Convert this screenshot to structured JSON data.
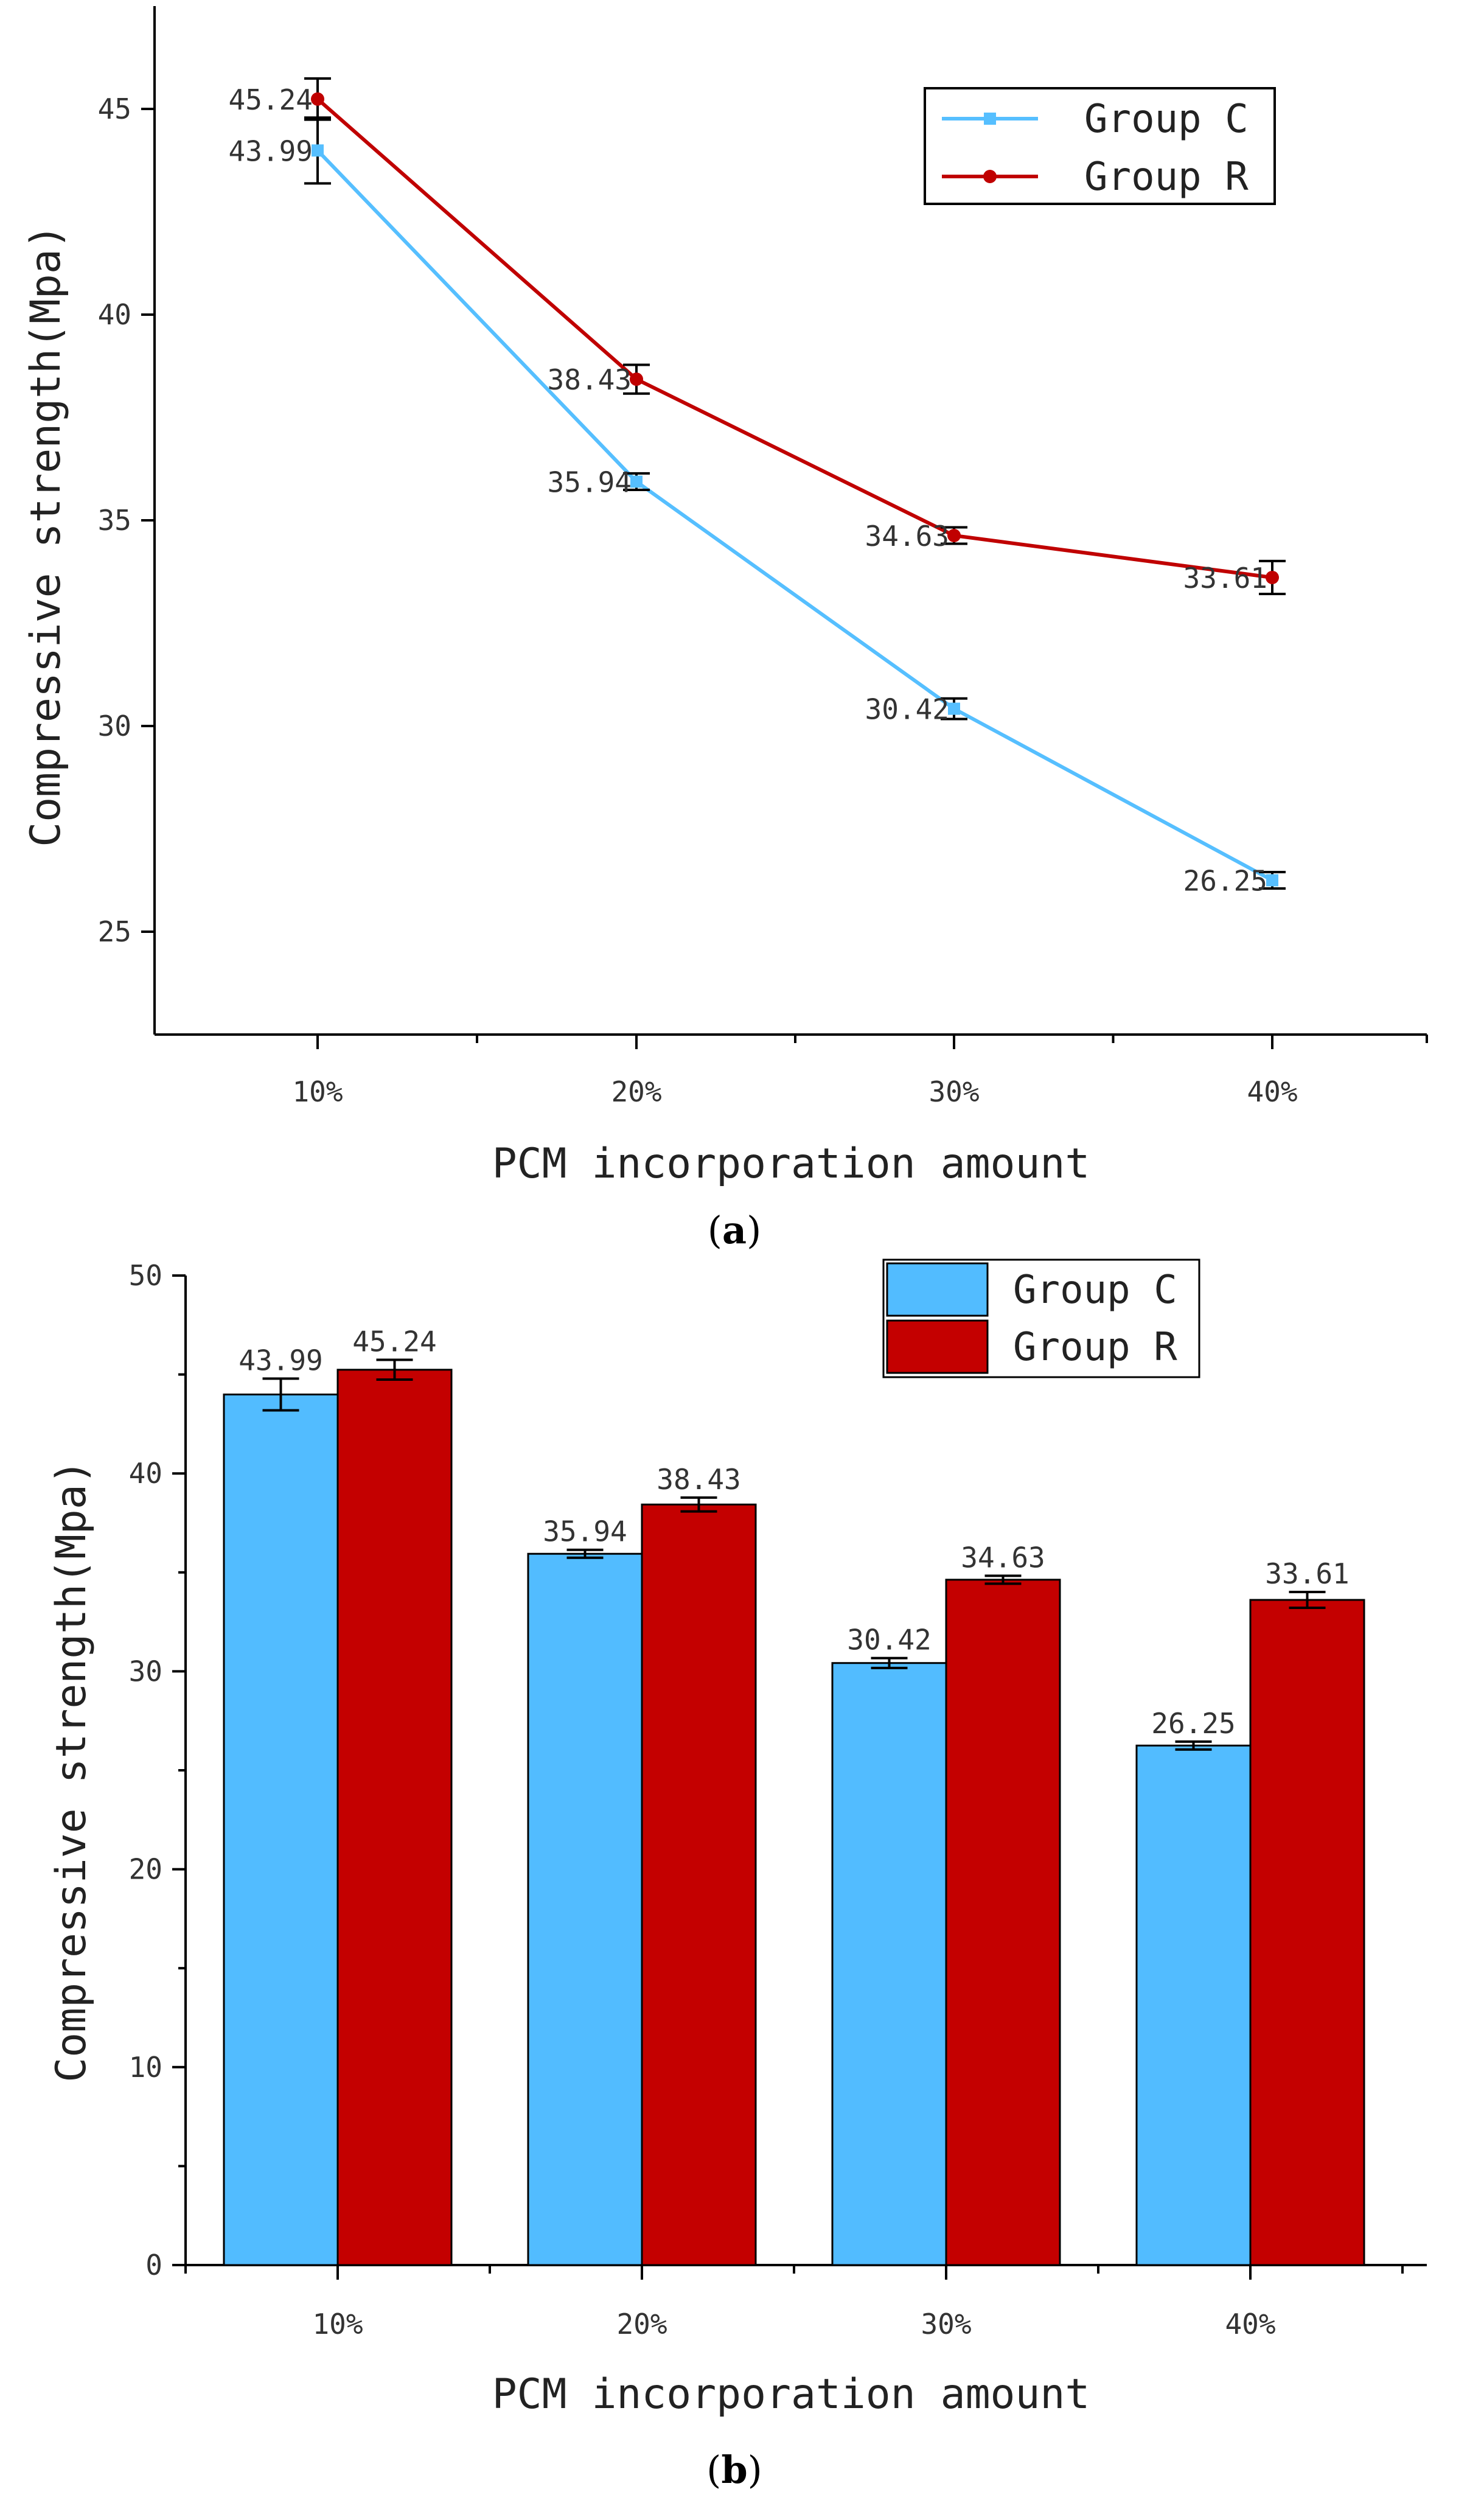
{
  "chart_data": [
    {
      "type": "line",
      "panel": "a",
      "caption_open": "(",
      "caption_letter": "a",
      "caption_close": ")",
      "categories": [
        "10%",
        "20%",
        "30%",
        "40%"
      ],
      "series": [
        {
          "name": "Group C",
          "values": [
            43.99,
            35.94,
            30.42,
            26.25
          ],
          "errors": [
            0.8,
            0.2,
            0.25,
            0.2
          ],
          "color": "#56bfff",
          "marker": "square"
        },
        {
          "name": "Group R",
          "values": [
            45.24,
            38.43,
            34.63,
            33.61
          ],
          "errors": [
            0.5,
            0.35,
            0.2,
            0.4
          ],
          "color": "#c00000",
          "marker": "circle"
        }
      ],
      "xlabel": "PCM incorporation amount",
      "ylabel": "Compressive strength(Mpa)",
      "ylim": [
        22.5,
        47.5
      ],
      "yticks": [
        25,
        30,
        35,
        40,
        45
      ],
      "legend_position": "top-right"
    },
    {
      "type": "bar",
      "panel": "b",
      "caption_open": "(",
      "caption_letter": "b",
      "caption_close": ")",
      "categories": [
        "10%",
        "20%",
        "30%",
        "40%"
      ],
      "series": [
        {
          "name": "Group C",
          "values": [
            43.99,
            35.94,
            30.42,
            26.25
          ],
          "errors": [
            0.8,
            0.2,
            0.25,
            0.2
          ],
          "color": "#52bcff"
        },
        {
          "name": "Group R",
          "values": [
            45.24,
            38.43,
            34.63,
            33.61
          ],
          "errors": [
            0.5,
            0.35,
            0.2,
            0.4
          ],
          "color": "#c40000"
        }
      ],
      "xlabel": "PCM incorporation amount",
      "ylabel": "Compressive strength(Mpa)",
      "ylim": [
        0,
        50
      ],
      "yticks": [
        0,
        10,
        20,
        30,
        40,
        50
      ],
      "legend_position": "top-right"
    }
  ]
}
